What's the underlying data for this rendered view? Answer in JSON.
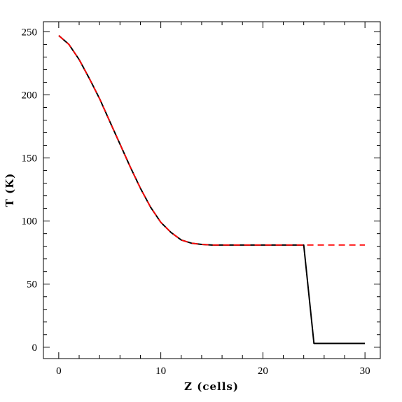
{
  "chart_data": {
    "type": "line",
    "xlabel": "Z (cells)",
    "ylabel": "T (K)",
    "xlim": [
      -1.5,
      31.5
    ],
    "ylim": [
      -9,
      258
    ],
    "x_ticks": [
      0,
      10,
      20,
      30
    ],
    "y_ticks": [
      0,
      50,
      100,
      150,
      200,
      250
    ],
    "x_minor_step": 2,
    "y_minor_step": 10,
    "grid": false,
    "legend": "none",
    "series": [
      {
        "color": "#000000",
        "style": "solid",
        "x": [
          0,
          1,
          2,
          3,
          4,
          5,
          6,
          7,
          8,
          9,
          10,
          11,
          12,
          13,
          14,
          15,
          16,
          17,
          18,
          19,
          20,
          21,
          22,
          23,
          24,
          25,
          26,
          27,
          28,
          29,
          30
        ],
        "y": [
          247,
          240,
          228,
          213,
          197,
          179,
          161,
          143,
          126,
          111,
          99,
          91,
          85,
          82.5,
          81.5,
          81,
          81,
          81,
          81,
          81,
          81,
          81,
          81,
          81,
          81,
          3,
          3,
          3,
          3,
          3,
          3
        ]
      },
      {
        "color": "#ff0000",
        "style": "dashed",
        "x": [
          0,
          1,
          2,
          3,
          4,
          5,
          6,
          7,
          8,
          9,
          10,
          11,
          12,
          13,
          14,
          15,
          16,
          17,
          18,
          19,
          20,
          21,
          22,
          23,
          24,
          25,
          26,
          27,
          28,
          29,
          30
        ],
        "y": [
          247,
          240,
          228,
          213,
          197,
          179,
          161,
          143,
          126,
          111,
          99,
          91,
          85,
          82.5,
          81.5,
          81,
          81,
          81,
          81,
          81,
          81,
          81,
          81,
          81,
          81,
          81,
          81,
          81,
          81,
          81,
          81
        ]
      }
    ]
  }
}
